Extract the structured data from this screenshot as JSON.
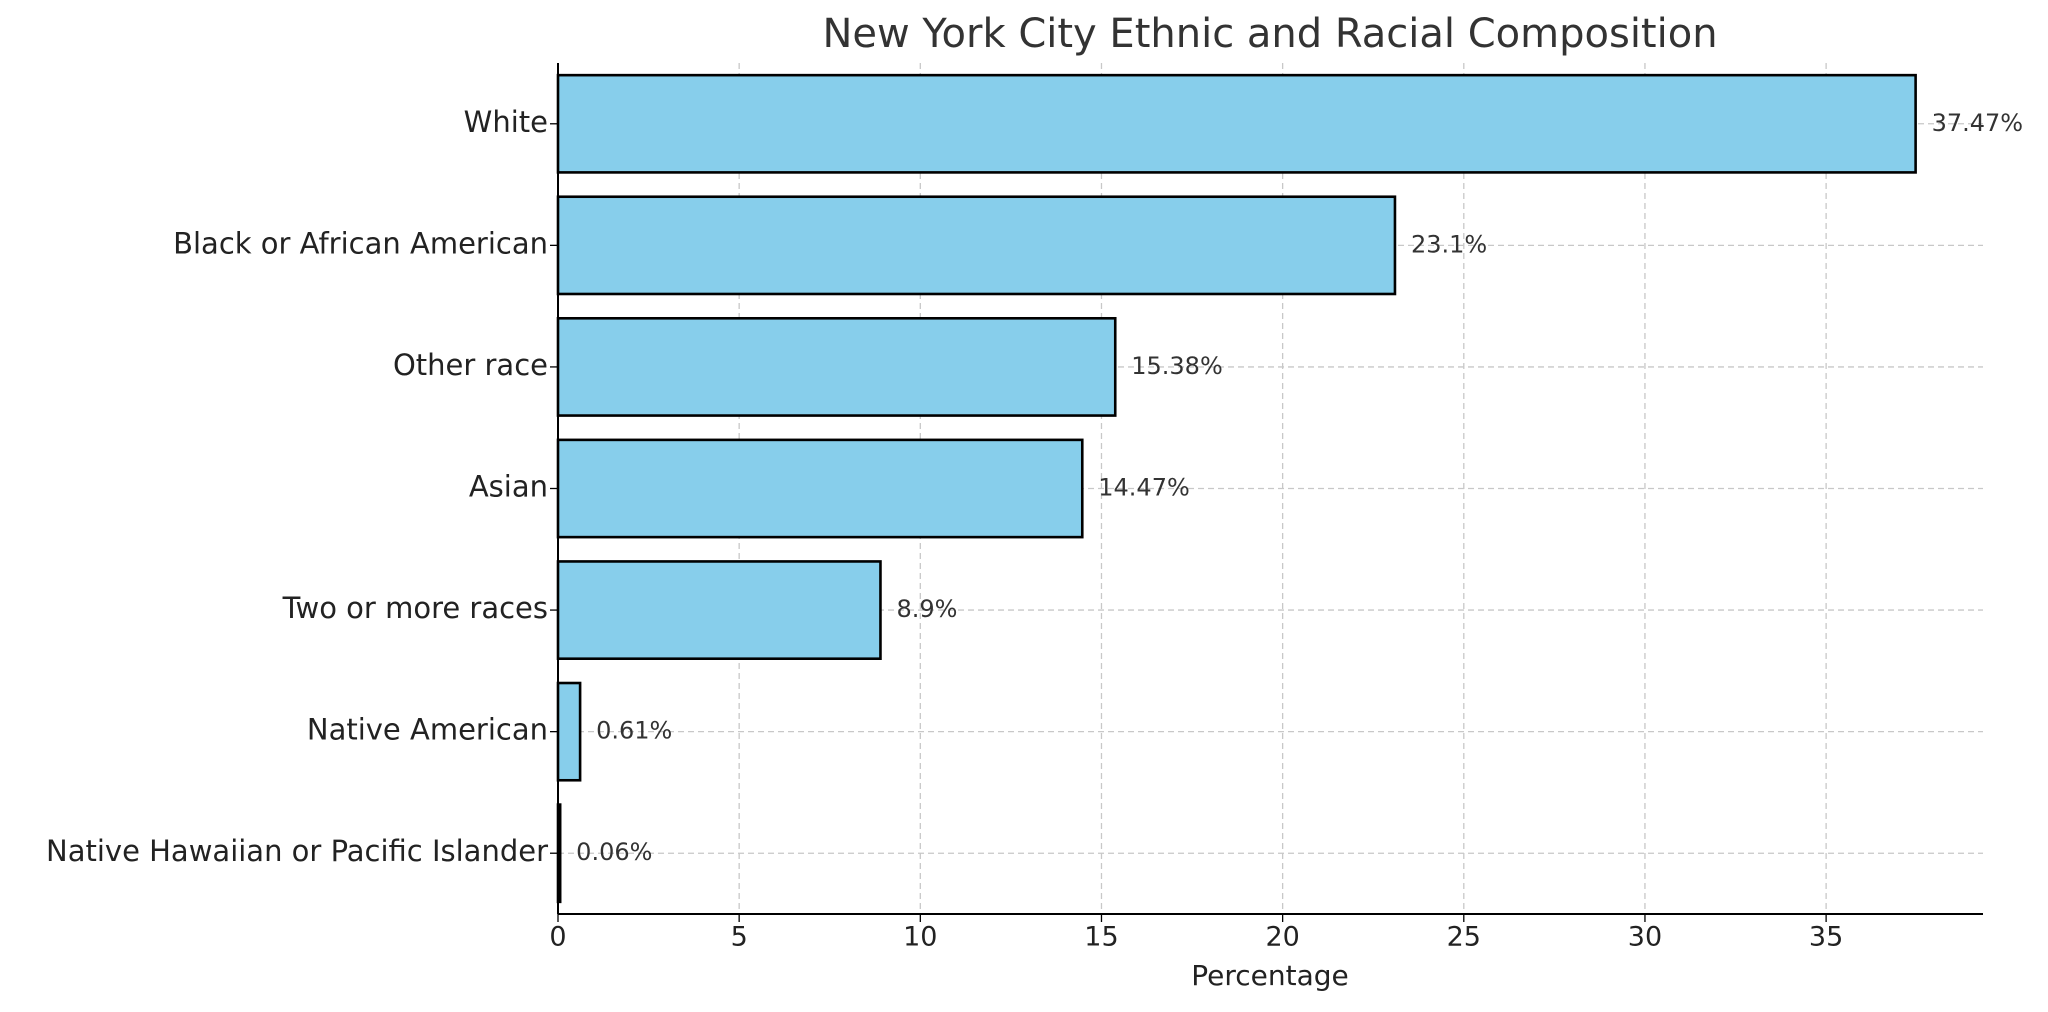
{
  "chart_data": {
    "type": "barh",
    "title": "New York City Ethnic and Racial Composition",
    "xlabel": "Percentage",
    "categories": [
      "White",
      "Black or African American",
      "Other race",
      "Asian",
      "Two or more races",
      "Native American",
      "Native Hawaiian or Pacific Islander"
    ],
    "values": [
      37.47,
      23.1,
      15.38,
      14.47,
      8.9,
      0.61,
      0.06
    ],
    "value_labels": [
      "37.47%",
      "23.1%",
      "15.38%",
      "14.47%",
      "8.9%",
      "0.61%",
      "0.06%"
    ],
    "color": "#87ceeb",
    "edgecolor": "#000000",
    "xlim": [
      0,
      39.33
    ],
    "xticks": [
      0,
      5,
      10,
      15,
      20,
      25,
      30,
      35
    ],
    "grid": true
  }
}
